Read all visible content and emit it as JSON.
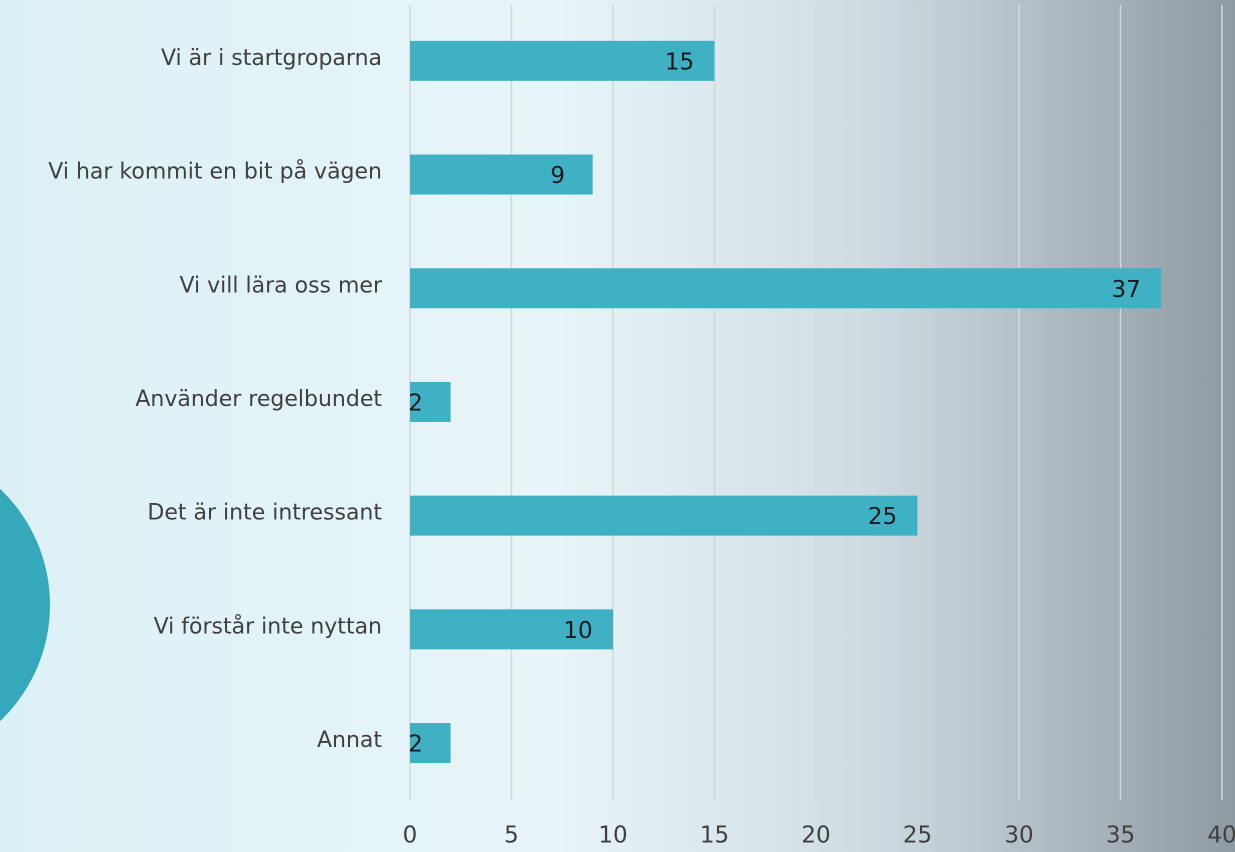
{
  "chart_data": {
    "type": "bar",
    "categories": [
      "Vi är i startgroparna",
      "Vi har kommit en bit på vägen",
      "Vi vill lära oss mer",
      "Använder regelbundet",
      "Det är inte intressant",
      "Vi förstår inte nyttan",
      "Annat"
    ],
    "values": [
      15,
      9,
      37,
      2,
      25,
      10,
      2
    ],
    "color": "#3fb1c4",
    "xlim": [
      0,
      40
    ],
    "xticks": [
      0,
      5,
      10,
      15,
      20,
      25,
      30,
      35,
      40
    ],
    "grid": true
  }
}
